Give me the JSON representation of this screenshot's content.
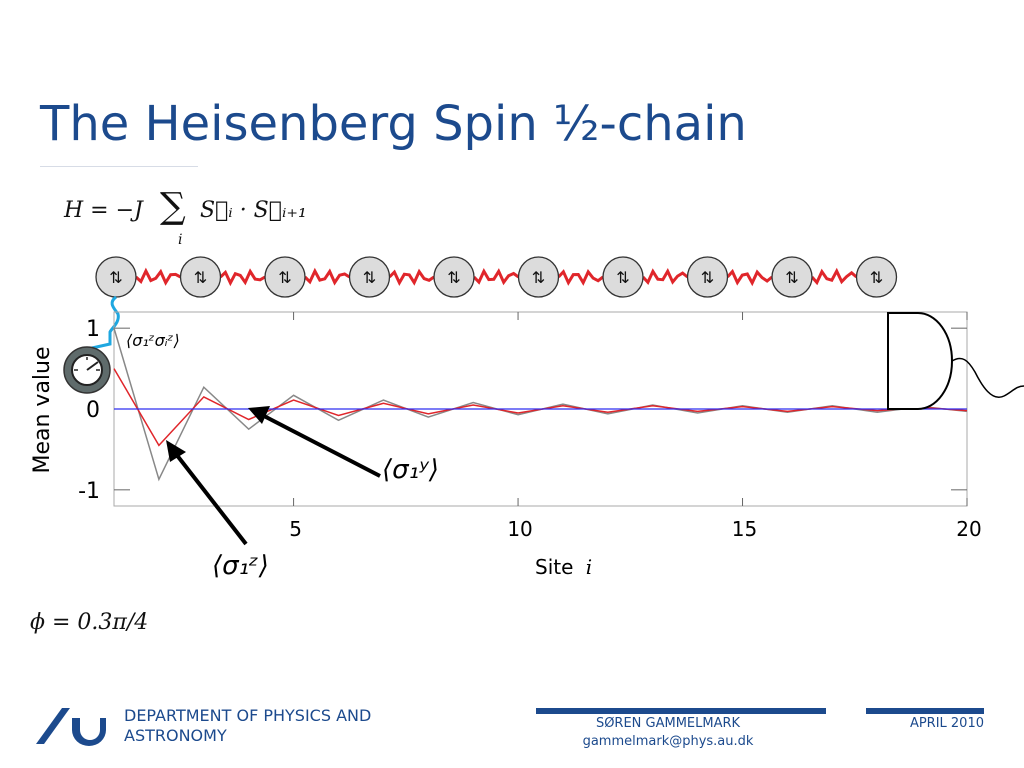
{
  "slide": {
    "title": "The Heisenberg Spin ½-chain",
    "hamiltonian": {
      "lhs": "H = −J",
      "sum_index": "i",
      "rhs": "S⃗ᵢ · S⃗ᵢ₊₁"
    },
    "phi_label": "ϕ = 0.3π/4",
    "spin_glyph": "⇅",
    "spin_count": 10,
    "annotations": {
      "correlator": "⟨σ₁ᶻσᵢᶻ⟩",
      "sigma_y": "⟨σ₁ʸ⟩",
      "sigma_z": "⟨σ₁ᶻ⟩"
    },
    "colors": {
      "title": "#1c4a8d",
      "bond": "#e0262b",
      "cable": "#1ea7e0",
      "gauge": "#5f6b6b"
    }
  },
  "footer": {
    "department_line1": "DEPARTMENT OF PHYSICS AND",
    "department_line2": "ASTRONOMY",
    "author": "SØREN GAMMELMARK",
    "email": "gammelmark@phys.au.dk",
    "date": "APRIL 2010"
  },
  "chart_data": {
    "type": "line",
    "xlabel": "Site",
    "xlabel_var": "i",
    "ylabel": "Mean value",
    "xlim": [
      1,
      20
    ],
    "ylim": [
      -1.2,
      1.2
    ],
    "xticks": [
      5,
      10,
      15,
      20
    ],
    "yticks": [
      1,
      0,
      -1
    ],
    "ytick_labels": [
      "1",
      "0",
      "-1"
    ],
    "x": [
      1,
      2,
      3,
      4,
      5,
      6,
      7,
      8,
      9,
      10,
      11,
      12,
      13,
      14,
      15,
      16,
      17,
      18,
      19,
      20
    ],
    "series": [
      {
        "color": "#888888",
        "values": [
          1.0,
          -0.87,
          0.27,
          -0.25,
          0.17,
          -0.14,
          0.11,
          -0.1,
          0.08,
          -0.07,
          0.06,
          -0.06,
          0.05,
          -0.05,
          0.04,
          -0.04,
          0.04,
          -0.04,
          0.03,
          -0.03
        ]
      },
      {
        "color": "#e0262b",
        "values": [
          0.5,
          -0.45,
          0.15,
          -0.13,
          0.11,
          -0.08,
          0.07,
          -0.06,
          0.05,
          -0.05,
          0.04,
          -0.04,
          0.04,
          -0.03,
          0.03,
          -0.03,
          0.03,
          -0.02,
          0.02,
          -0.02
        ]
      },
      {
        "color": "#2d2df0",
        "values": [
          0,
          0,
          0,
          0,
          0,
          0,
          0,
          0,
          0,
          0,
          0,
          0,
          0,
          0,
          0,
          0,
          0,
          0,
          0,
          0
        ]
      }
    ],
    "grid": false
  }
}
